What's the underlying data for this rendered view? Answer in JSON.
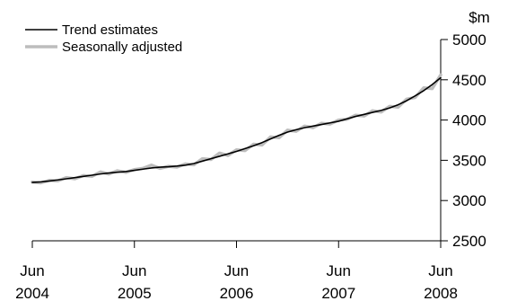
{
  "chart_data": {
    "type": "line",
    "title": "",
    "xlabel": "",
    "ylabel": "$m",
    "y_axis_position": "right",
    "ylim": [
      2500,
      5000
    ],
    "yticks": [
      2500,
      3000,
      3500,
      4000,
      4500,
      5000
    ],
    "x_ticks": [
      {
        "line1": "Jun",
        "line2": "2004",
        "t": 0
      },
      {
        "line1": "Jun",
        "line2": "2005",
        "t": 12
      },
      {
        "line1": "Jun",
        "line2": "2006",
        "t": 24
      },
      {
        "line1": "Jun",
        "line2": "2007",
        "t": 36
      },
      {
        "line1": "Jun",
        "line2": "2008",
        "t": 48
      }
    ],
    "legend_position": "top-left",
    "grid": false,
    "series": [
      {
        "name": "Trend estimates",
        "color": "#000000",
        "t": [
          0,
          1,
          2,
          3,
          4,
          5,
          6,
          7,
          8,
          9,
          10,
          11,
          12,
          13,
          14,
          15,
          16,
          17,
          18,
          19,
          20,
          21,
          22,
          23,
          24,
          25,
          26,
          27,
          28,
          29,
          30,
          31,
          32,
          33,
          34,
          35,
          36,
          37,
          38,
          39,
          40,
          41,
          42,
          43,
          44,
          45,
          46,
          47,
          48
        ],
        "values": [
          3225,
          3232,
          3243,
          3256,
          3270,
          3285,
          3300,
          3315,
          3330,
          3342,
          3352,
          3360,
          3375,
          3390,
          3405,
          3415,
          3420,
          3428,
          3440,
          3460,
          3490,
          3520,
          3550,
          3580,
          3610,
          3645,
          3680,
          3720,
          3765,
          3810,
          3850,
          3880,
          3905,
          3925,
          3945,
          3965,
          3985,
          4015,
          4045,
          4070,
          4095,
          4120,
          4150,
          4190,
          4240,
          4300,
          4365,
          4440,
          4525
        ]
      },
      {
        "name": "Seasonally adjusted",
        "color": "#bdbdbd",
        "t": [
          0,
          1,
          2,
          3,
          4,
          5,
          6,
          7,
          8,
          9,
          10,
          11,
          12,
          13,
          14,
          15,
          16,
          17,
          18,
          19,
          20,
          21,
          22,
          23,
          24,
          25,
          26,
          27,
          28,
          29,
          30,
          31,
          32,
          33,
          34,
          35,
          36,
          37,
          38,
          39,
          40,
          41,
          42,
          43,
          44,
          45,
          46,
          47,
          48
        ],
        "values": [
          3230,
          3220,
          3250,
          3245,
          3285,
          3270,
          3310,
          3300,
          3355,
          3330,
          3370,
          3350,
          3385,
          3400,
          3440,
          3400,
          3425,
          3415,
          3455,
          3445,
          3520,
          3510,
          3590,
          3560,
          3630,
          3620,
          3700,
          3690,
          3790,
          3780,
          3875,
          3860,
          3925,
          3905,
          3960,
          3950,
          4000,
          4010,
          4060,
          4050,
          4115,
          4100,
          4170,
          4160,
          4260,
          4280,
          4400,
          4390,
          4560
        ]
      }
    ]
  }
}
